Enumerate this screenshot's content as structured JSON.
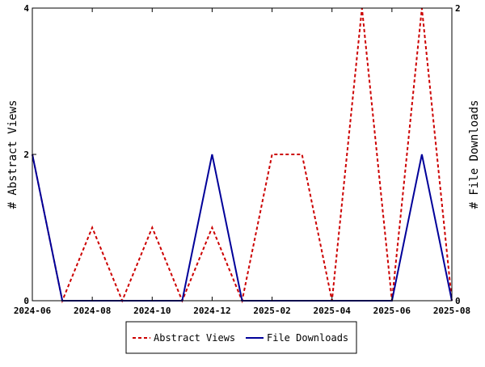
{
  "chart_data": {
    "type": "line",
    "title": "",
    "x": [
      "2024-06",
      "2024-07",
      "2024-08",
      "2024-09",
      "2024-10",
      "2024-11",
      "2024-12",
      "2025-01",
      "2025-02",
      "2025-03",
      "2025-04",
      "2025-05",
      "2025-06",
      "2025-07",
      "2025-08"
    ],
    "xtick_labels": [
      "2024-06",
      "2024-08",
      "2024-10",
      "2024-12",
      "2025-02",
      "2025-04",
      "2025-06",
      "2025-08"
    ],
    "ylabel_left": "# Abstract Views",
    "ylabel_right": "# File Downloads",
    "ylim_left": [
      0,
      4
    ],
    "ylim_right": [
      0,
      2
    ],
    "yticks_left": [
      "0",
      "2",
      "4"
    ],
    "yticks_right": [
      "0",
      "2"
    ],
    "grid": false,
    "legend_position": "bottom",
    "series": [
      {
        "name": "Abstract Views",
        "axis": "left",
        "color": "#cc0000",
        "style": "dashed",
        "values": [
          2,
          0,
          1,
          0,
          1,
          0,
          1,
          0,
          2,
          2,
          0,
          4,
          0,
          4,
          0
        ]
      },
      {
        "name": "File Downloads",
        "axis": "right",
        "color": "#000099",
        "style": "solid",
        "values": [
          1,
          0,
          0,
          0,
          0,
          0,
          1,
          0,
          0,
          0,
          0,
          0,
          0,
          1,
          0
        ]
      }
    ]
  }
}
